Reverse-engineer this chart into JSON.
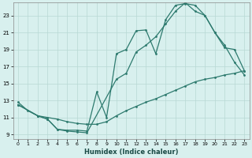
{
  "xlabel": "Humidex (Indice chaleur)",
  "background_color": "#d8f0ee",
  "grid_color": "#b8d8d4",
  "line_color": "#2d7a6e",
  "xlim": [
    -0.5,
    23.5
  ],
  "ylim": [
    8.5,
    24.5
  ],
  "xticks": [
    0,
    1,
    2,
    3,
    4,
    5,
    6,
    7,
    8,
    9,
    10,
    11,
    12,
    13,
    14,
    15,
    16,
    17,
    18,
    19,
    20,
    21,
    22,
    23
  ],
  "yticks": [
    9,
    11,
    13,
    15,
    17,
    19,
    21,
    23
  ],
  "curve1_x": [
    0,
    1,
    2,
    3,
    4,
    5,
    6,
    7,
    8,
    9,
    10,
    11,
    12,
    13,
    14,
    15,
    16,
    17,
    18,
    19,
    20,
    21,
    22,
    23
  ],
  "curve1_y": [
    12.8,
    11.8,
    11.2,
    10.8,
    9.6,
    9.5,
    9.5,
    9.4,
    14.0,
    11.0,
    18.5,
    19.0,
    21.2,
    21.3,
    18.5,
    22.5,
    24.2,
    24.4,
    24.2,
    23.0,
    21.0,
    19.2,
    19.0,
    16.5
  ],
  "curve2_x": [
    0,
    2,
    3,
    4,
    5,
    6,
    7,
    10,
    11,
    12,
    13,
    14,
    15,
    16,
    17,
    18,
    19,
    20,
    21,
    22,
    23
  ],
  "curve2_y": [
    12.5,
    11.2,
    10.8,
    9.6,
    9.4,
    9.3,
    9.2,
    15.5,
    16.2,
    18.7,
    19.5,
    20.5,
    22.0,
    23.5,
    24.5,
    23.5,
    23.0,
    21.0,
    19.5,
    17.5,
    16.0
  ],
  "curve3_x": [
    0,
    2,
    3,
    4,
    5,
    6,
    7,
    8,
    9,
    10,
    11,
    12,
    13,
    14,
    15,
    16,
    17,
    18,
    19,
    20,
    21,
    22,
    23
  ],
  "curve3_y": [
    12.5,
    11.2,
    11.0,
    10.8,
    10.5,
    10.3,
    10.2,
    10.2,
    10.5,
    11.2,
    11.8,
    12.3,
    12.8,
    13.2,
    13.7,
    14.2,
    14.7,
    15.2,
    15.5,
    15.7,
    16.0,
    16.2,
    16.5
  ]
}
